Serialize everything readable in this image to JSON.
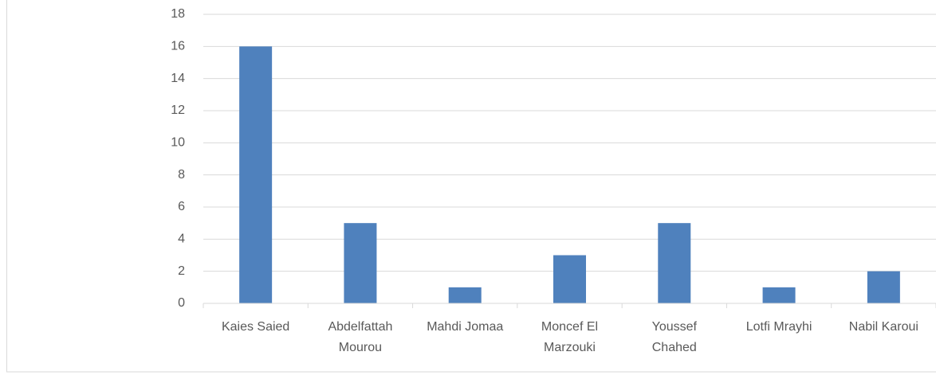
{
  "chart_data": {
    "type": "bar",
    "categories": [
      "Kaies Saied",
      "Abdelfattah Mourou",
      "Mahdi Jomaa",
      "Moncef El Marzouki",
      "Youssef Chahed",
      "Lotfi Mrayhi",
      "Nabil Karoui"
    ],
    "values": [
      16,
      5,
      1,
      3,
      5,
      1,
      2
    ],
    "color": "#4f81bd",
    "ylim": [
      0,
      18
    ],
    "yticks": [
      0,
      2,
      4,
      6,
      8,
      10,
      12,
      14,
      16,
      18
    ],
    "grid": true
  }
}
